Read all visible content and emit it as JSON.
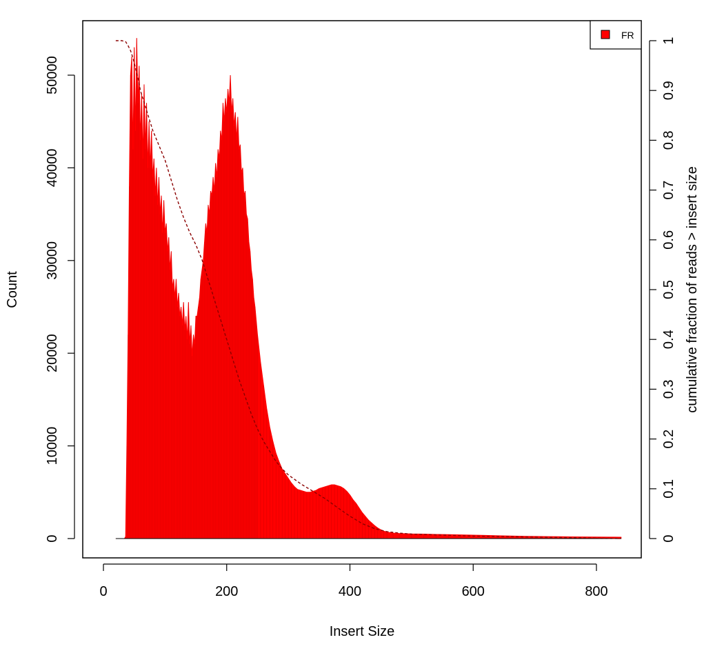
{
  "chart_data": {
    "type": "bar",
    "title": "",
    "xlabel": "Insert Size",
    "ylabel": "Count",
    "y2label": "cumulative fraction of reads > insert size",
    "xlim": [
      0,
      840
    ],
    "ylim": [
      0,
      55000
    ],
    "y2lim": [
      0,
      1
    ],
    "xticks": [
      0,
      200,
      400,
      600,
      800
    ],
    "yticks": [
      0,
      10000,
      20000,
      30000,
      40000,
      50000
    ],
    "y2ticks": [
      0,
      0.1,
      0.2,
      0.3,
      0.4,
      0.5,
      0.6,
      0.7,
      0.8,
      0.9,
      1
    ],
    "grid": false,
    "legend": {
      "position": "top-right",
      "entries": [
        {
          "name": "FR",
          "color": "#ff0000"
        }
      ]
    },
    "series": [
      {
        "name": "FR",
        "kind": "histogram",
        "color": "#ff0000",
        "points": [
          [
            20,
            0
          ],
          [
            34,
            0
          ],
          [
            36,
            200
          ],
          [
            38,
            10000
          ],
          [
            40,
            22000
          ],
          [
            42,
            38000
          ],
          [
            44,
            50000
          ],
          [
            46,
            52000
          ],
          [
            48,
            42000
          ],
          [
            50,
            53000
          ],
          [
            52,
            44000
          ],
          [
            54,
            54000
          ],
          [
            56,
            47000
          ],
          [
            58,
            51000
          ],
          [
            60,
            43000
          ],
          [
            62,
            48000
          ],
          [
            64,
            41000
          ],
          [
            66,
            49000
          ],
          [
            68,
            42000
          ],
          [
            70,
            47000
          ],
          [
            72,
            40000
          ],
          [
            74,
            45000
          ],
          [
            76,
            40000
          ],
          [
            78,
            44000
          ],
          [
            80,
            39000
          ],
          [
            82,
            41000
          ],
          [
            84,
            37000
          ],
          [
            86,
            40000
          ],
          [
            88,
            36000
          ],
          [
            90,
            39000
          ],
          [
            92,
            35000
          ],
          [
            94,
            37000
          ],
          [
            96,
            33000
          ],
          [
            98,
            36500
          ],
          [
            100,
            33000
          ],
          [
            102,
            34000
          ],
          [
            104,
            31000
          ],
          [
            106,
            32500
          ],
          [
            108,
            29000
          ],
          [
            110,
            31000
          ],
          [
            112,
            27000
          ],
          [
            114,
            28000
          ],
          [
            116,
            26000
          ],
          [
            118,
            28000
          ],
          [
            120,
            25000
          ],
          [
            122,
            26500
          ],
          [
            124,
            24000
          ],
          [
            126,
            25000
          ],
          [
            128,
            23000
          ],
          [
            130,
            25500
          ],
          [
            132,
            22500
          ],
          [
            134,
            24000
          ],
          [
            136,
            21500
          ],
          [
            138,
            25500
          ],
          [
            140,
            21000
          ],
          [
            142,
            23000
          ],
          [
            144,
            19700
          ],
          [
            146,
            22000
          ],
          [
            148,
            21000
          ],
          [
            150,
            24000
          ],
          [
            152,
            24000
          ],
          [
            154,
            25000
          ],
          [
            156,
            26000
          ],
          [
            158,
            28000
          ],
          [
            160,
            29000
          ],
          [
            162,
            30000
          ],
          [
            164,
            32000
          ],
          [
            166,
            34000
          ],
          [
            168,
            33000
          ],
          [
            170,
            36000
          ],
          [
            172,
            35000
          ],
          [
            174,
            37500
          ],
          [
            176,
            37000
          ],
          [
            178,
            39000
          ],
          [
            180,
            37500
          ],
          [
            182,
            40500
          ],
          [
            184,
            39000
          ],
          [
            186,
            42000
          ],
          [
            188,
            41000
          ],
          [
            190,
            44000
          ],
          [
            192,
            43000
          ],
          [
            194,
            47000
          ],
          [
            196,
            45000
          ],
          [
            198,
            47500
          ],
          [
            200,
            46000
          ],
          [
            202,
            48500
          ],
          [
            204,
            47000
          ],
          [
            206,
            50000
          ],
          [
            208,
            46000
          ],
          [
            210,
            47500
          ],
          [
            212,
            44500
          ],
          [
            214,
            46000
          ],
          [
            216,
            43000
          ],
          [
            218,
            45500
          ],
          [
            220,
            42000
          ],
          [
            222,
            42500
          ],
          [
            224,
            39500
          ],
          [
            226,
            40000
          ],
          [
            228,
            37000
          ],
          [
            230,
            37500
          ],
          [
            232,
            35000
          ],
          [
            234,
            34500
          ],
          [
            236,
            32000
          ],
          [
            238,
            31000
          ],
          [
            240,
            29000
          ],
          [
            242,
            28000
          ],
          [
            244,
            26000
          ],
          [
            246,
            25000
          ],
          [
            248,
            23500
          ],
          [
            250,
            22000
          ],
          [
            255,
            19000
          ],
          [
            260,
            16500
          ],
          [
            265,
            14000
          ],
          [
            270,
            12000
          ],
          [
            275,
            10500
          ],
          [
            280,
            9200
          ],
          [
            285,
            8300
          ],
          [
            290,
            7500
          ],
          [
            295,
            7000
          ],
          [
            300,
            6500
          ],
          [
            305,
            6000
          ],
          [
            310,
            5600
          ],
          [
            315,
            5300
          ],
          [
            320,
            5200
          ],
          [
            325,
            5100
          ],
          [
            330,
            5000
          ],
          [
            335,
            5000
          ],
          [
            340,
            5100
          ],
          [
            345,
            5200
          ],
          [
            350,
            5400
          ],
          [
            355,
            5500
          ],
          [
            360,
            5600
          ],
          [
            365,
            5700
          ],
          [
            370,
            5800
          ],
          [
            375,
            5800
          ],
          [
            380,
            5700
          ],
          [
            385,
            5600
          ],
          [
            390,
            5400
          ],
          [
            395,
            5100
          ],
          [
            400,
            4700
          ],
          [
            405,
            4200
          ],
          [
            410,
            3800
          ],
          [
            415,
            3300
          ],
          [
            420,
            2800
          ],
          [
            425,
            2400
          ],
          [
            430,
            2000
          ],
          [
            435,
            1700
          ],
          [
            440,
            1400
          ],
          [
            445,
            1150
          ],
          [
            450,
            950
          ],
          [
            455,
            800
          ],
          [
            460,
            700
          ],
          [
            470,
            600
          ],
          [
            480,
            550
          ],
          [
            500,
            500
          ],
          [
            520,
            480
          ],
          [
            540,
            450
          ],
          [
            560,
            430
          ],
          [
            580,
            400
          ],
          [
            600,
            370
          ],
          [
            620,
            340
          ],
          [
            640,
            310
          ],
          [
            660,
            280
          ],
          [
            680,
            250
          ],
          [
            700,
            230
          ],
          [
            720,
            210
          ],
          [
            740,
            200
          ],
          [
            760,
            190
          ],
          [
            780,
            180
          ],
          [
            800,
            170
          ],
          [
            820,
            160
          ],
          [
            840,
            150
          ]
        ]
      },
      {
        "name": "cumulative fraction of reads > insert size",
        "kind": "line",
        "axis": "right",
        "color": "#8b0000",
        "style": "dashed",
        "points": [
          [
            20,
            1
          ],
          [
            30,
            1
          ],
          [
            36,
            0.998
          ],
          [
            40,
            0.99
          ],
          [
            44,
            0.98
          ],
          [
            48,
            0.965
          ],
          [
            52,
            0.945
          ],
          [
            56,
            0.925
          ],
          [
            60,
            0.9
          ],
          [
            65,
            0.88
          ],
          [
            70,
            0.86
          ],
          [
            75,
            0.84
          ],
          [
            80,
            0.82
          ],
          [
            90,
            0.79
          ],
          [
            100,
            0.76
          ],
          [
            110,
            0.72
          ],
          [
            120,
            0.68
          ],
          [
            130,
            0.645
          ],
          [
            140,
            0.615
          ],
          [
            150,
            0.59
          ],
          [
            160,
            0.56
          ],
          [
            170,
            0.52
          ],
          [
            180,
            0.48
          ],
          [
            190,
            0.44
          ],
          [
            200,
            0.4
          ],
          [
            210,
            0.36
          ],
          [
            220,
            0.32
          ],
          [
            230,
            0.285
          ],
          [
            240,
            0.25
          ],
          [
            250,
            0.22
          ],
          [
            260,
            0.195
          ],
          [
            270,
            0.175
          ],
          [
            280,
            0.155
          ],
          [
            290,
            0.14
          ],
          [
            300,
            0.128
          ],
          [
            320,
            0.11
          ],
          [
            340,
            0.095
          ],
          [
            360,
            0.08
          ],
          [
            380,
            0.062
          ],
          [
            400,
            0.045
          ],
          [
            420,
            0.03
          ],
          [
            440,
            0.02
          ],
          [
            460,
            0.014
          ],
          [
            480,
            0.011
          ],
          [
            500,
            0.009
          ],
          [
            550,
            0.007
          ],
          [
            600,
            0.005
          ],
          [
            650,
            0.004
          ],
          [
            700,
            0.003
          ],
          [
            750,
            0.002
          ],
          [
            800,
            0.001
          ],
          [
            840,
            0
          ]
        ]
      }
    ]
  }
}
